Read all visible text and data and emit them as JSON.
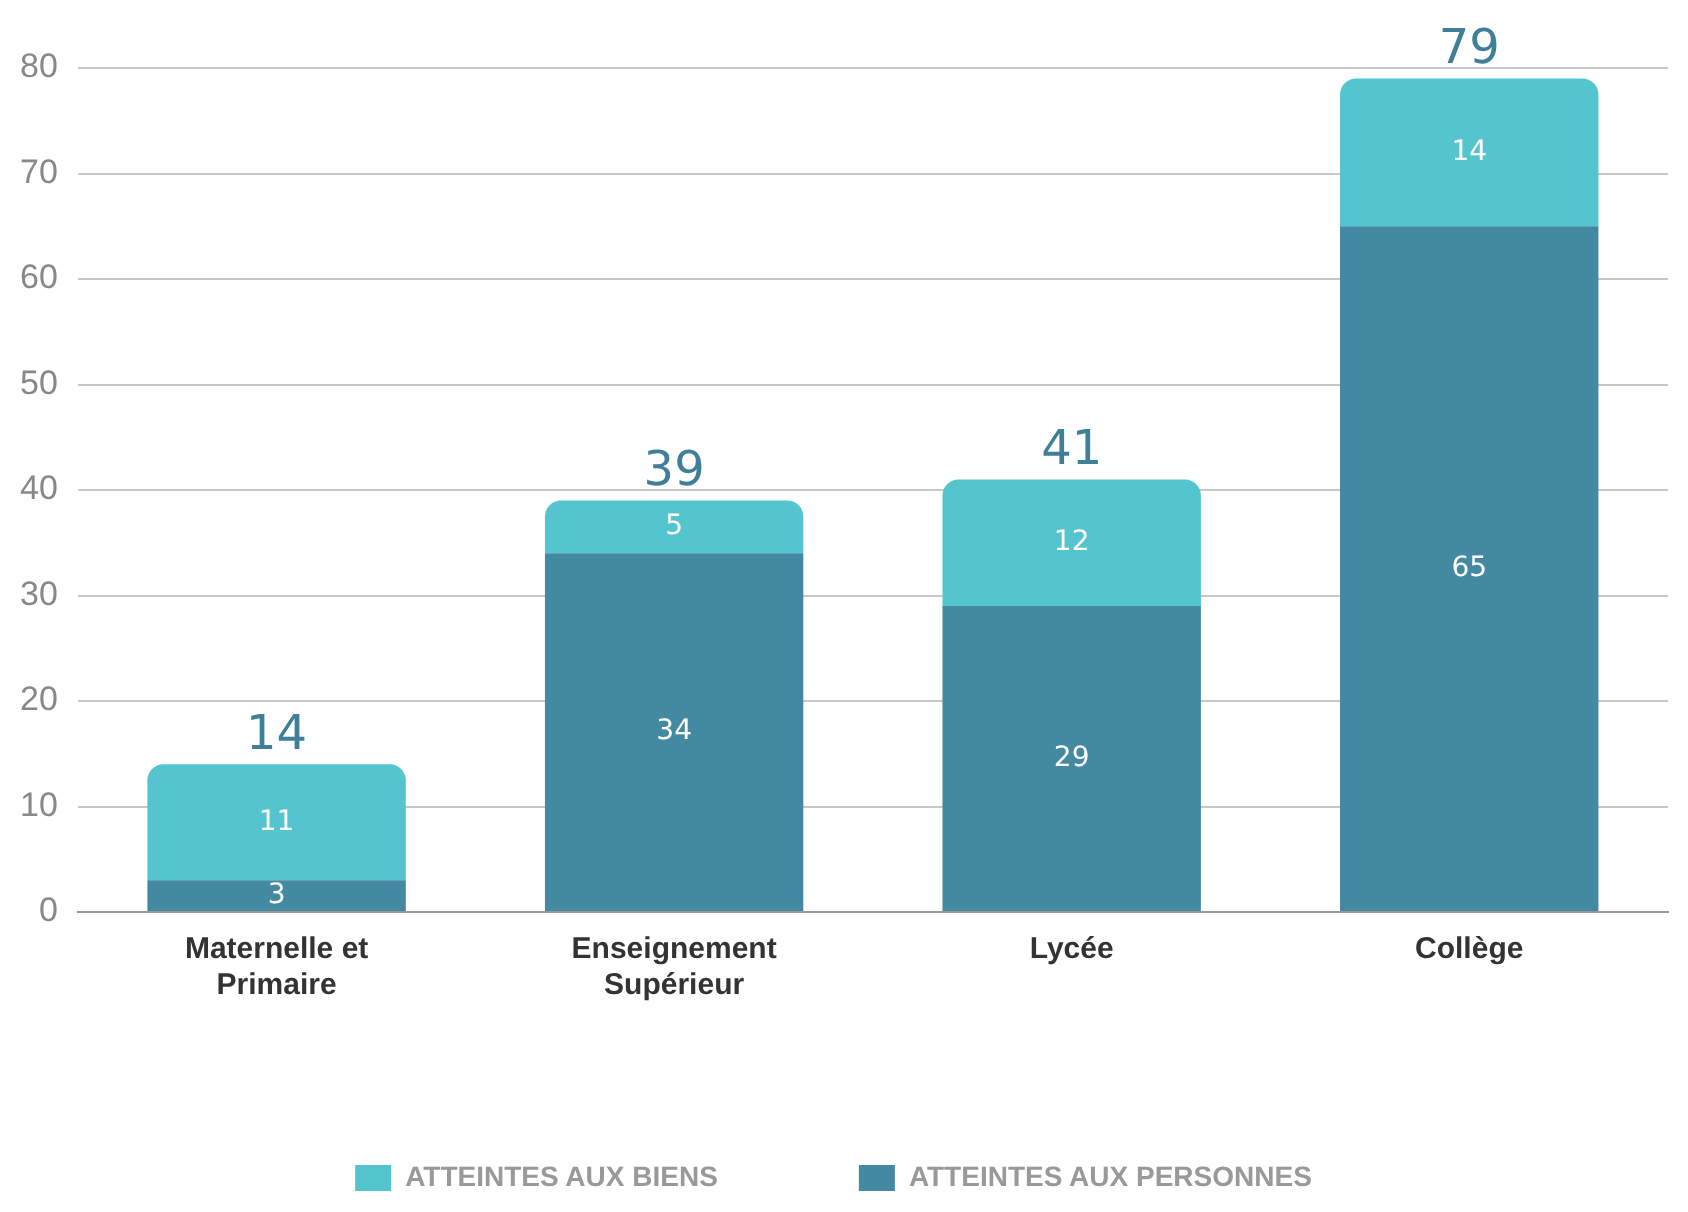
{
  "chart_data": {
    "type": "bar",
    "stacked": true,
    "categories": [
      "Maternelle et Primaire",
      "Enseignement Supérieur",
      "Lycée",
      "Collège"
    ],
    "series": [
      {
        "name": "ATTEINTES AUX PERSONNES",
        "color": "#4389a2",
        "values": [
          3,
          34,
          29,
          65
        ]
      },
      {
        "name": "ATTEINTES AUX BIENS",
        "color": "#54c5ce",
        "values": [
          11,
          5,
          12,
          14
        ]
      }
    ],
    "totals": [
      "14",
      "39",
      "41",
      "79"
    ],
    "data_labels": true,
    "ylim": [
      0,
      80
    ],
    "yticks": [
      0,
      10,
      20,
      30,
      40,
      50,
      60,
      70,
      80
    ],
    "grid": "y",
    "legend": "bottom"
  }
}
